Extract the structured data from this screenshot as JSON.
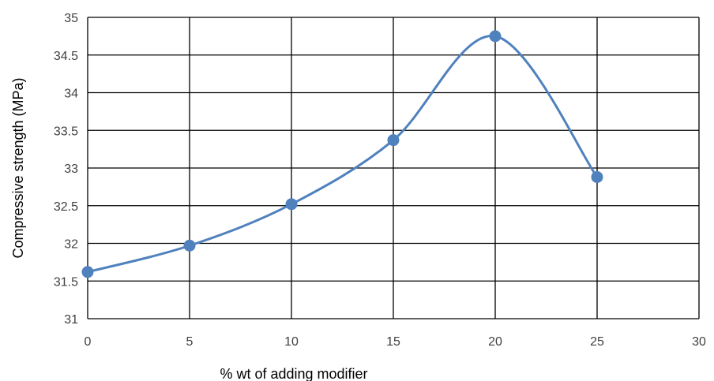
{
  "chart_data": {
    "type": "line",
    "title": "",
    "xlabel": "%  wt of adding modifier",
    "ylabel": "Compressive strength (MPa)",
    "xlim": [
      0,
      30
    ],
    "ylim": [
      31,
      35
    ],
    "xticks": [
      0,
      5,
      10,
      15,
      20,
      25,
      30
    ],
    "yticks": [
      31,
      31.5,
      32,
      32.5,
      33,
      33.5,
      34,
      34.5,
      35
    ],
    "grid": true,
    "legend": "none",
    "smooth": true,
    "series": [
      {
        "x": [
          0,
          5,
          10,
          15,
          20,
          25
        ],
        "y": [
          31.62,
          31.97,
          32.52,
          33.37,
          34.75,
          32.88
        ],
        "color": "#4F81BD",
        "marker": "circle"
      }
    ]
  }
}
